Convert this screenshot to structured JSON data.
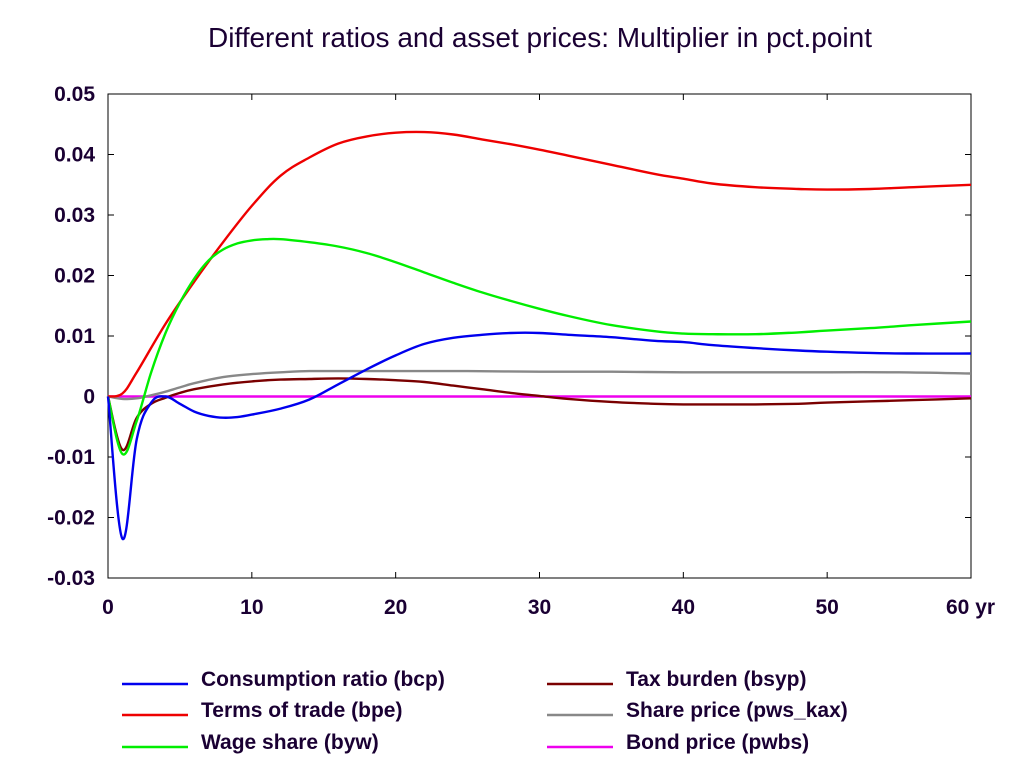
{
  "chart_data": {
    "type": "line",
    "title": "Different ratios and asset prices: Multiplier in pct.point",
    "xlabel": "",
    "ylabel": "",
    "xlim": [
      0,
      60
    ],
    "ylim": [
      -0.03,
      0.05
    ],
    "x_ticks": [
      "0",
      "10",
      "20",
      "30",
      "40",
      "50",
      "60 yr"
    ],
    "y_ticks": [
      "0.05",
      "0.04",
      "0.03",
      "0.02",
      "0.01",
      "0",
      "-0.01",
      "-0.02",
      "-0.03"
    ],
    "grid": false,
    "legend_position": "bottom",
    "series": [
      {
        "name": "Consumption ratio (bcp)",
        "color": "#0000ee",
        "x": [
          0,
          1,
          2,
          3,
          4,
          5,
          6,
          7,
          8,
          9,
          10,
          12,
          14,
          16,
          18,
          20,
          22,
          24,
          26,
          28,
          30,
          32,
          35,
          38,
          40,
          42,
          45,
          48,
          50,
          53,
          56,
          60
        ],
        "y": [
          0,
          -0.0235,
          -0.007,
          -0.001,
          0,
          -0.0012,
          -0.0025,
          -0.0032,
          -0.0035,
          -0.0034,
          -0.003,
          -0.002,
          -0.0005,
          0.002,
          0.0045,
          0.0068,
          0.0087,
          0.0097,
          0.0102,
          0.0105,
          0.0105,
          0.0102,
          0.0098,
          0.0092,
          0.009,
          0.0085,
          0.008,
          0.0076,
          0.0074,
          0.0072,
          0.0071,
          0.0071
        ]
      },
      {
        "name": "Terms of trade (bpe)",
        "color": "#ee0000",
        "x": [
          0,
          1,
          2,
          4,
          6,
          8,
          10,
          12,
          14,
          16,
          18,
          20,
          22,
          24,
          26,
          28,
          30,
          32,
          35,
          38,
          40,
          42,
          45,
          48,
          50,
          53,
          56,
          60
        ],
        "y": [
          0,
          0.0005,
          0.004,
          0.012,
          0.019,
          0.0255,
          0.0315,
          0.0365,
          0.0395,
          0.0418,
          0.043,
          0.0436,
          0.0437,
          0.0433,
          0.0425,
          0.0417,
          0.0408,
          0.0398,
          0.0383,
          0.0368,
          0.036,
          0.0352,
          0.0346,
          0.0343,
          0.0342,
          0.0343,
          0.0346,
          0.035
        ]
      },
      {
        "name": "Wage share (byw)",
        "color": "#00ee00",
        "x": [
          0,
          1,
          2,
          3,
          4,
          5,
          6,
          7,
          8,
          9,
          10,
          11,
          12,
          14,
          16,
          18,
          20,
          22,
          24,
          26,
          28,
          30,
          32,
          35,
          38,
          40,
          42,
          45,
          48,
          50,
          53,
          56,
          60
        ],
        "y": [
          0,
          -0.0095,
          -0.004,
          0.004,
          0.0105,
          0.0155,
          0.0195,
          0.0225,
          0.0243,
          0.0253,
          0.0258,
          0.026,
          0.026,
          0.0255,
          0.0248,
          0.0237,
          0.0222,
          0.0205,
          0.0188,
          0.0172,
          0.0158,
          0.0145,
          0.0133,
          0.0118,
          0.0108,
          0.0104,
          0.0103,
          0.0103,
          0.0106,
          0.0109,
          0.0113,
          0.0118,
          0.0124
        ]
      },
      {
        "name": "Tax burden (bsyp)",
        "color": "#7a0000",
        "x": [
          0,
          1,
          2,
          3,
          4,
          5,
          6,
          8,
          10,
          12,
          14,
          16,
          18,
          20,
          22,
          24,
          26,
          28,
          30,
          32,
          35,
          38,
          40,
          42,
          45,
          48,
          50,
          53,
          56,
          60
        ],
        "y": [
          0,
          -0.0088,
          -0.0035,
          -0.0012,
          -0.0002,
          0.0006,
          0.0012,
          0.002,
          0.0025,
          0.0028,
          0.0029,
          0.003,
          0.0029,
          0.0027,
          0.0024,
          0.0018,
          0.0012,
          0.0006,
          0.0001,
          -0.0004,
          -0.0009,
          -0.0012,
          -0.0013,
          -0.0013,
          -0.0013,
          -0.0012,
          -0.001,
          -0.0008,
          -0.0006,
          -0.0003
        ]
      },
      {
        "name": "Share price (pws_kax)",
        "color": "#888888",
        "x": [
          0,
          1,
          2,
          3,
          4,
          5,
          6,
          8,
          10,
          12,
          14,
          16,
          20,
          25,
          30,
          35,
          40,
          45,
          50,
          55,
          60
        ],
        "y": [
          0,
          -0.0004,
          -0.0003,
          0.0002,
          0.0008,
          0.0015,
          0.0022,
          0.0032,
          0.0037,
          0.004,
          0.0042,
          0.0042,
          0.0042,
          0.0042,
          0.0041,
          0.0041,
          0.004,
          0.004,
          0.004,
          0.004,
          0.0038
        ]
      },
      {
        "name": "Bond price (pwbs)",
        "color": "#ee00ee",
        "x": [
          0,
          10,
          20,
          30,
          40,
          50,
          60
        ],
        "y": [
          0,
          0,
          0,
          0,
          0,
          0,
          0
        ]
      }
    ]
  }
}
